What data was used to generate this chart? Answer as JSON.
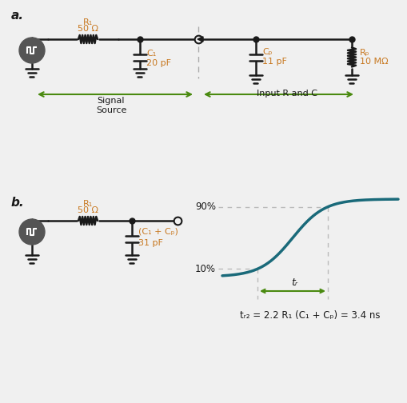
{
  "bg_color": "#f0f0f0",
  "line_color": "#1a1a1a",
  "teal_color": "#1a6a7a",
  "orange_color": "#c87820",
  "green_color": "#4a8a10",
  "gray_dark": "#444444",
  "label_a": "a.",
  "label_b": "b.",
  "r1_label_a": "R₁",
  "r1_val_a": "50 Ω",
  "c1_label": "C₁",
  "c1_val": "20 pF",
  "cp_label": "Cₚ",
  "cp_val": "11 pF",
  "rp_label": "Rₚ",
  "rp_val": "10 MΩ",
  "r1_label_b": "R₁",
  "r1_val_b": "50 Ω",
  "c12_label": "(C₁ + Cₚ)",
  "c12_val": "31 pF",
  "sig_src_label": "Signal\nSource",
  "input_rc_label": "Input R and C",
  "pct90": "90%",
  "pct10": "10%",
  "tr_label": "tᵣ",
  "formula": "tᵣ₂ = 2.2 R₁ (C₁ + Cₚ) = 3.4 ns"
}
